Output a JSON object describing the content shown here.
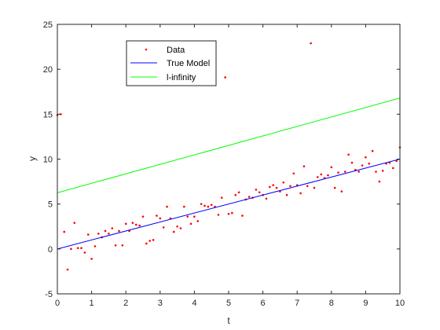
{
  "chart_data": {
    "type": "scatter",
    "title": "",
    "xlabel": "t",
    "ylabel": "y",
    "xlim": [
      0,
      10
    ],
    "ylim": [
      -5,
      25
    ],
    "xticks": [
      0,
      1,
      2,
      3,
      4,
      5,
      6,
      7,
      8,
      9,
      10
    ],
    "yticks": [
      -5,
      0,
      5,
      10,
      15,
      20,
      25
    ],
    "grid": false,
    "legend_position": "top-left",
    "series": [
      {
        "name": "Data",
        "kind": "points",
        "color": "#ff0000",
        "x": [
          0.0,
          0.1,
          0.2,
          0.3,
          0.4,
          0.5,
          0.6,
          0.7,
          0.8,
          0.9,
          1.0,
          1.1,
          1.2,
          1.3,
          1.4,
          1.5,
          1.6,
          1.7,
          1.8,
          1.9,
          2.0,
          2.1,
          2.2,
          2.3,
          2.4,
          2.5,
          2.6,
          2.7,
          2.8,
          2.9,
          3.0,
          3.1,
          3.2,
          3.3,
          3.4,
          3.5,
          3.6,
          3.7,
          3.8,
          3.9,
          4.0,
          4.1,
          4.2,
          4.3,
          4.4,
          4.5,
          4.6,
          4.7,
          4.8,
          4.9,
          5.0,
          5.1,
          5.2,
          5.3,
          5.4,
          5.5,
          5.6,
          5.7,
          5.8,
          5.9,
          6.0,
          6.1,
          6.2,
          6.3,
          6.4,
          6.5,
          6.6,
          6.7,
          6.8,
          6.9,
          7.0,
          7.1,
          7.2,
          7.3,
          7.4,
          7.5,
          7.6,
          7.7,
          7.8,
          7.9,
          8.0,
          8.1,
          8.2,
          8.3,
          8.4,
          8.5,
          8.6,
          8.7,
          8.8,
          8.9,
          9.0,
          9.1,
          9.2,
          9.3,
          9.4,
          9.5,
          9.6,
          9.7,
          9.8,
          9.9,
          10.0
        ],
        "y": [
          14.9,
          15.0,
          1.9,
          -2.3,
          0.0,
          2.9,
          0.1,
          0.1,
          -0.4,
          1.6,
          -1.1,
          0.3,
          1.7,
          1.3,
          2.0,
          1.7,
          2.3,
          0.4,
          2.0,
          0.4,
          2.8,
          2.0,
          2.9,
          2.7,
          2.6,
          3.6,
          0.6,
          0.9,
          1.0,
          3.7,
          3.4,
          2.4,
          4.7,
          3.4,
          1.9,
          2.5,
          2.3,
          4.7,
          3.6,
          2.8,
          3.6,
          3.1,
          5.0,
          4.8,
          4.7,
          4.9,
          4.7,
          3.8,
          5.7,
          19.1,
          3.9,
          4.0,
          6.0,
          6.3,
          3.7,
          5.5,
          5.8,
          5.7,
          6.6,
          6.3,
          6.0,
          5.6,
          6.9,
          7.1,
          6.8,
          6.4,
          7.4,
          6.0,
          7.0,
          8.4,
          7.1,
          6.2,
          9.2,
          7.0,
          22.9,
          6.8,
          8.0,
          8.3,
          7.9,
          8.2,
          9.1,
          6.8,
          8.5,
          6.4,
          8.6,
          10.5,
          9.6,
          8.8,
          8.6,
          9.3,
          10.2,
          9.5,
          10.9,
          8.6,
          7.5,
          8.7,
          9.5,
          9.6,
          9.0,
          9.8,
          11.3
        ]
      },
      {
        "name": "True Model",
        "kind": "line",
        "color": "#0000ff",
        "x": [
          0,
          10
        ],
        "y": [
          0,
          10
        ]
      },
      {
        "name": "l-infinity",
        "kind": "line",
        "color": "#00ff00",
        "x": [
          0,
          10
        ],
        "y": [
          6.25,
          16.8
        ]
      }
    ]
  }
}
